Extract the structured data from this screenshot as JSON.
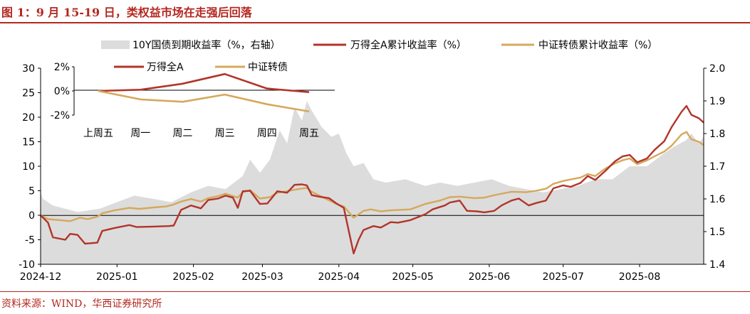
{
  "figure": {
    "title": "图 1：9 月 15-19 日，类权益市场在走强后回落",
    "source": "资料来源：WIND，华西证券研究所"
  },
  "chart_data": [
    {
      "type": "line",
      "title": "",
      "x_type": "date",
      "x_ticks": [
        "2024-12",
        "2025-01",
        "2025-02",
        "2025-03",
        "2025-04",
        "2025-05",
        "2025-06",
        "2025-07",
        "2025-08"
      ],
      "xlim": [
        "2024-12-01",
        "2025-08-27"
      ],
      "ylim_left": [
        -10,
        30
      ],
      "y_ticks_left": [
        -10,
        -5,
        0,
        5,
        10,
        15,
        20,
        25,
        30
      ],
      "ylim_right": [
        1.4,
        2.0
      ],
      "y_ticks_right": [
        1.4,
        1.5,
        1.6,
        1.7,
        1.8,
        1.9,
        2.0
      ],
      "legend_position": "top",
      "grid": false,
      "series": [
        {
          "name": "10Y国债到期收益率（%，右轴）",
          "kind": "area",
          "axis": "right",
          "color": "#dcdcdc",
          "points": [
            [
              "2024-12-01",
              1.62
            ],
            [
              "2024-12-02",
              1.6
            ],
            [
              "2024-12-06",
              1.58
            ],
            [
              "2024-12-16",
              1.56
            ],
            [
              "2024-12-25",
              1.57
            ],
            [
              "2025-01-08",
              1.61
            ],
            [
              "2025-01-16",
              1.6
            ],
            [
              "2025-01-23",
              1.59
            ],
            [
              "2025-01-31",
              1.62
            ],
            [
              "2025-02-07",
              1.64
            ],
            [
              "2025-02-14",
              1.63
            ],
            [
              "2025-02-21",
              1.67
            ],
            [
              "2025-02-24",
              1.72
            ],
            [
              "2025-02-28",
              1.68
            ],
            [
              "2025-03-04",
              1.72
            ],
            [
              "2025-03-08",
              1.81
            ],
            [
              "2025-03-11",
              1.77
            ],
            [
              "2025-03-14",
              1.88
            ],
            [
              "2025-03-17",
              1.84
            ],
            [
              "2025-03-19",
              1.9
            ],
            [
              "2025-03-21",
              1.87
            ],
            [
              "2025-03-25",
              1.82
            ],
            [
              "2025-03-29",
              1.79
            ],
            [
              "2025-04-01",
              1.8
            ],
            [
              "2025-04-04",
              1.74
            ],
            [
              "2025-04-07",
              1.7
            ],
            [
              "2025-04-11",
              1.71
            ],
            [
              "2025-04-15",
              1.66
            ],
            [
              "2025-04-20",
              1.65
            ],
            [
              "2025-04-28",
              1.66
            ],
            [
              "2025-05-06",
              1.64
            ],
            [
              "2025-05-12",
              1.65
            ],
            [
              "2025-05-19",
              1.64
            ],
            [
              "2025-05-26",
              1.65
            ],
            [
              "2025-06-02",
              1.66
            ],
            [
              "2025-06-09",
              1.64
            ],
            [
              "2025-06-16",
              1.63
            ],
            [
              "2025-06-23",
              1.62
            ],
            [
              "2025-06-30",
              1.63
            ],
            [
              "2025-07-07",
              1.64
            ],
            [
              "2025-07-14",
              1.66
            ],
            [
              "2025-07-21",
              1.66
            ],
            [
              "2025-07-28",
              1.7
            ],
            [
              "2025-08-04",
              1.7
            ],
            [
              "2025-08-11",
              1.74
            ],
            [
              "2025-08-15",
              1.76
            ],
            [
              "2025-08-20",
              1.78
            ],
            [
              "2025-08-22",
              1.8
            ],
            [
              "2025-08-25",
              1.77
            ],
            [
              "2025-08-27",
              1.79
            ]
          ]
        },
        {
          "name": "万得全A累计收益率（%）",
          "kind": "line",
          "axis": "left",
          "color": "#b2342a",
          "points": [
            [
              "2024-12-01",
              0
            ],
            [
              "2024-12-04",
              -1.5
            ],
            [
              "2024-12-06",
              -4.5
            ],
            [
              "2024-12-11",
              -5
            ],
            [
              "2024-12-13",
              -3.8
            ],
            [
              "2024-12-16",
              -4
            ],
            [
              "2024-12-19",
              -5.8
            ],
            [
              "2024-12-24",
              -5.6
            ],
            [
              "2024-12-26",
              -3.2
            ],
            [
              "2024-12-31",
              -2.6
            ],
            [
              "2025-01-06",
              -2
            ],
            [
              "2025-01-09",
              -2.4
            ],
            [
              "2025-01-16",
              -2.3
            ],
            [
              "2025-01-22",
              -2.2
            ],
            [
              "2025-01-24",
              -2.1
            ],
            [
              "2025-01-27",
              1.1
            ],
            [
              "2025-01-31",
              2
            ],
            [
              "2025-02-04",
              1.4
            ],
            [
              "2025-02-07",
              3.1
            ],
            [
              "2025-02-11",
              3.4
            ],
            [
              "2025-02-14",
              4
            ],
            [
              "2025-02-17",
              3.6
            ],
            [
              "2025-02-19",
              1.5
            ],
            [
              "2025-02-21",
              4.9
            ],
            [
              "2025-02-24",
              5
            ],
            [
              "2025-02-28",
              2.3
            ],
            [
              "2025-03-03",
              2.4
            ],
            [
              "2025-03-07",
              4.9
            ],
            [
              "2025-03-11",
              4.6
            ],
            [
              "2025-03-14",
              6.2
            ],
            [
              "2025-03-17",
              6.3
            ],
            [
              "2025-03-19",
              6.1
            ],
            [
              "2025-03-21",
              4.1
            ],
            [
              "2025-03-24",
              3.8
            ],
            [
              "2025-03-28",
              3.5
            ],
            [
              "2025-03-31",
              2.4
            ],
            [
              "2025-04-03",
              1.5
            ],
            [
              "2025-04-07",
              -7.8
            ],
            [
              "2025-04-09",
              -5
            ],
            [
              "2025-04-11",
              -3
            ],
            [
              "2025-04-15",
              -2.2
            ],
            [
              "2025-04-18",
              -2.5
            ],
            [
              "2025-04-22",
              -1.4
            ],
            [
              "2025-04-25",
              -1.5
            ],
            [
              "2025-04-30",
              -1
            ],
            [
              "2025-05-06",
              0.2
            ],
            [
              "2025-05-09",
              1.2
            ],
            [
              "2025-05-14",
              2
            ],
            [
              "2025-05-16",
              2.6
            ],
            [
              "2025-05-20",
              3
            ],
            [
              "2025-05-23",
              0.9
            ],
            [
              "2025-05-27",
              0.8
            ],
            [
              "2025-05-30",
              0.6
            ],
            [
              "2025-06-03",
              0.9
            ],
            [
              "2025-06-06",
              2
            ],
            [
              "2025-06-10",
              3
            ],
            [
              "2025-06-13",
              3.4
            ],
            [
              "2025-06-17",
              2
            ],
            [
              "2025-06-20",
              2.5
            ],
            [
              "2025-06-24",
              3
            ],
            [
              "2025-06-27",
              5.5
            ],
            [
              "2025-07-01",
              6.1
            ],
            [
              "2025-07-04",
              5.8
            ],
            [
              "2025-07-08",
              6.6
            ],
            [
              "2025-07-11",
              8
            ],
            [
              "2025-07-14",
              7.2
            ],
            [
              "2025-07-18",
              9
            ],
            [
              "2025-07-22",
              11
            ],
            [
              "2025-07-25",
              12
            ],
            [
              "2025-07-28",
              12.3
            ],
            [
              "2025-07-31",
              10.8
            ],
            [
              "2025-08-04",
              11.6
            ],
            [
              "2025-08-07",
              13.3
            ],
            [
              "2025-08-11",
              15.1
            ],
            [
              "2025-08-14",
              18
            ],
            [
              "2025-08-18",
              21.1
            ],
            [
              "2025-08-20",
              22.3
            ],
            [
              "2025-08-22",
              20.5
            ],
            [
              "2025-08-25",
              19.8
            ],
            [
              "2025-08-27",
              18.9
            ]
          ]
        },
        {
          "name": "中证转债累计收益率（%）",
          "kind": "line",
          "axis": "left",
          "color": "#d5a85c",
          "points": [
            [
              "2024-12-01",
              0
            ],
            [
              "2024-12-04",
              -0.8
            ],
            [
              "2024-12-09",
              -1
            ],
            [
              "2024-12-13",
              -1.2
            ],
            [
              "2024-12-17",
              -0.5
            ],
            [
              "2024-12-20",
              -0.8
            ],
            [
              "2024-12-24",
              -0.3
            ],
            [
              "2024-12-26",
              0.4
            ],
            [
              "2024-12-31",
              1
            ],
            [
              "2025-01-06",
              1.5
            ],
            [
              "2025-01-10",
              1.3
            ],
            [
              "2025-01-16",
              1.6
            ],
            [
              "2025-01-21",
              1.8
            ],
            [
              "2025-01-24",
              2.2
            ],
            [
              "2025-01-27",
              2.8
            ],
            [
              "2025-01-31",
              3.3
            ],
            [
              "2025-02-04",
              2.8
            ],
            [
              "2025-02-07",
              3.5
            ],
            [
              "2025-02-11",
              3.9
            ],
            [
              "2025-02-14",
              4.4
            ],
            [
              "2025-02-19",
              3.6
            ],
            [
              "2025-02-21",
              4.7
            ],
            [
              "2025-02-24",
              5.1
            ],
            [
              "2025-02-28",
              3.4
            ],
            [
              "2025-03-04",
              3.7
            ],
            [
              "2025-03-07",
              4.6
            ],
            [
              "2025-03-11",
              4.9
            ],
            [
              "2025-03-14",
              5.2
            ],
            [
              "2025-03-19",
              5.6
            ],
            [
              "2025-03-21",
              4.8
            ],
            [
              "2025-03-25",
              3.8
            ],
            [
              "2025-03-31",
              2.3
            ],
            [
              "2025-04-03",
              1.8
            ],
            [
              "2025-04-07",
              -0.5
            ],
            [
              "2025-04-09",
              0.2
            ],
            [
              "2025-04-11",
              0.9
            ],
            [
              "2025-04-14",
              1.2
            ],
            [
              "2025-04-18",
              0.8
            ],
            [
              "2025-04-22",
              1
            ],
            [
              "2025-04-30",
              1.2
            ],
            [
              "2025-05-06",
              2.3
            ],
            [
              "2025-05-12",
              3
            ],
            [
              "2025-05-16",
              3.7
            ],
            [
              "2025-05-20",
              3.8
            ],
            [
              "2025-05-26",
              3.5
            ],
            [
              "2025-05-30",
              3.6
            ],
            [
              "2025-06-04",
              4.2
            ],
            [
              "2025-06-10",
              4.8
            ],
            [
              "2025-06-16",
              4.7
            ],
            [
              "2025-06-20",
              5
            ],
            [
              "2025-06-24",
              5.4
            ],
            [
              "2025-06-27",
              6.4
            ],
            [
              "2025-07-01",
              7
            ],
            [
              "2025-07-04",
              7.3
            ],
            [
              "2025-07-08",
              7.7
            ],
            [
              "2025-07-11",
              8.4
            ],
            [
              "2025-07-14",
              8
            ],
            [
              "2025-07-18",
              9.5
            ],
            [
              "2025-07-22",
              10.6
            ],
            [
              "2025-07-25",
              11.2
            ],
            [
              "2025-07-28",
              11.6
            ],
            [
              "2025-07-31",
              10.4
            ],
            [
              "2025-08-04",
              11.2
            ],
            [
              "2025-08-07",
              12
            ],
            [
              "2025-08-11",
              13
            ],
            [
              "2025-08-14",
              14.2
            ],
            [
              "2025-08-18",
              16.5
            ],
            [
              "2025-08-20",
              17
            ],
            [
              "2025-08-22",
              15.5
            ],
            [
              "2025-08-25",
              15
            ],
            [
              "2025-08-27",
              14.3
            ]
          ]
        }
      ]
    },
    {
      "type": "line",
      "title": "",
      "role": "inset",
      "categories": [
        "上周五",
        "周一",
        "周二",
        "周三",
        "周四",
        "周五"
      ],
      "ylim": [
        -2,
        2
      ],
      "y_ticks": [
        "-2%",
        "0%",
        "2%"
      ],
      "legend_position": "top",
      "series": [
        {
          "name": "万得全A",
          "color": "#b2342a",
          "values": [
            0,
            0.1,
            0.6,
            1.4,
            0.2,
            -0.1
          ]
        },
        {
          "name": "中证转债",
          "color": "#d5a85c",
          "values": [
            0,
            -0.7,
            -0.9,
            -0.3,
            -1.1,
            -1.7
          ]
        }
      ]
    }
  ]
}
